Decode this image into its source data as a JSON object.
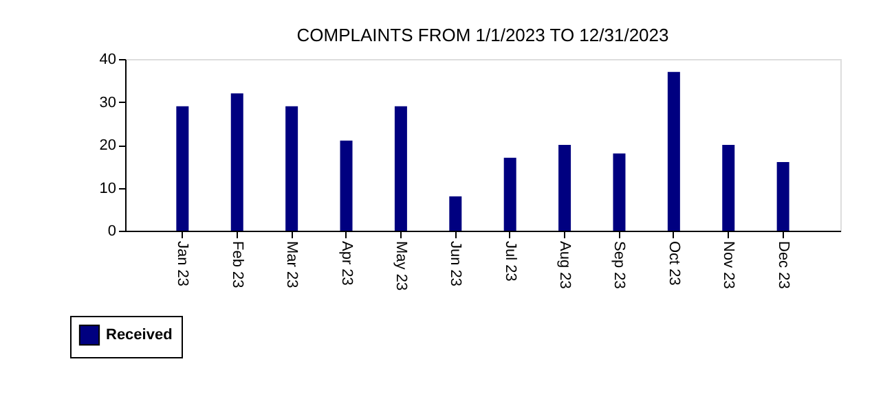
{
  "chart_data": {
    "type": "bar",
    "title": "COMPLAINTS FROM 1/1/2023 TO 12/31/2023",
    "categories": [
      "Jan 23",
      "Feb 23",
      "Mar 23",
      "Apr 23",
      "May 23",
      "Jun 23",
      "Jul 23",
      "Aug 23",
      "Sep 23",
      "Oct 23",
      "Nov 23",
      "Dec 23"
    ],
    "series": [
      {
        "name": "Received",
        "color": "#000080",
        "values": [
          29,
          32,
          29,
          21,
          29,
          8,
          17,
          20,
          18,
          37,
          20,
          16
        ]
      }
    ],
    "ylim": [
      0,
      40
    ],
    "yticks": [
      0,
      10,
      20,
      30,
      40
    ],
    "grid": false,
    "legend": "bottom left"
  }
}
